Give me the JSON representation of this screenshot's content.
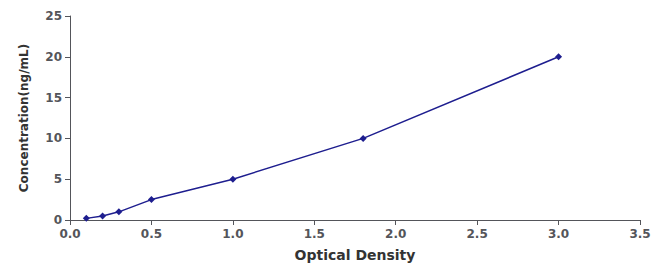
{
  "chart_data": {
    "type": "line",
    "x": [
      0.1,
      0.2,
      0.3,
      0.5,
      1.0,
      1.8,
      3.0
    ],
    "values": [
      0.2,
      0.5,
      1.0,
      2.5,
      5.0,
      10.0,
      20.0
    ],
    "color": "#1e1e8f",
    "marker": "diamond",
    "xlabel": "Optical Density",
    "ylabel": "Concentration(ng/mL)",
    "xlim": [
      0,
      3.5
    ],
    "ylim": [
      0,
      25
    ],
    "xticks": [
      {
        "value": 0,
        "label": "0.0"
      },
      0.5,
      {
        "value": 1,
        "label": "1.0"
      },
      1.5,
      {
        "value": 2,
        "label": "2.0"
      },
      2.5,
      {
        "value": 3,
        "label": "3.0"
      },
      3.5
    ],
    "yticks": [
      0,
      5,
      10,
      15,
      20,
      25
    ],
    "grid": false
  }
}
